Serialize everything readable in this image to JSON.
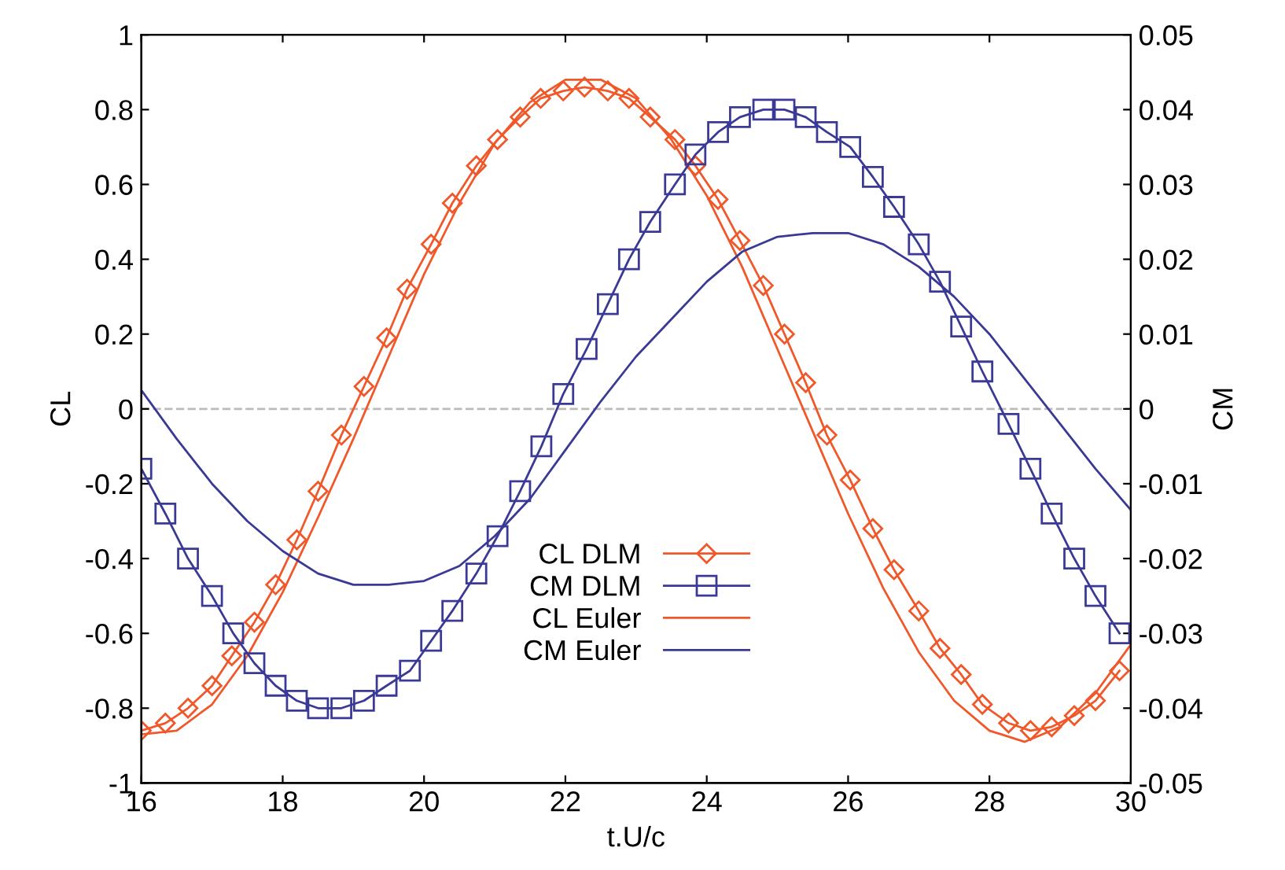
{
  "chart_data": {
    "type": "line",
    "xlabel": "t.U/c",
    "ylabel": "CL",
    "y2label": "CM",
    "xlim": [
      16,
      30
    ],
    "xticks": [
      16,
      18,
      20,
      22,
      24,
      26,
      28,
      30
    ],
    "ylim": [
      -1,
      1
    ],
    "yticks": [
      -1,
      -0.8,
      -0.6,
      -0.4,
      -0.2,
      0,
      0.2,
      0.4,
      0.6,
      0.8,
      1
    ],
    "y2lim": [
      -0.05,
      0.05
    ],
    "y2ticks": [
      -0.05,
      -0.04,
      -0.03,
      -0.02,
      -0.01,
      0,
      0.01,
      0.02,
      0.03,
      0.04,
      0.05
    ],
    "grid": false,
    "legend": "bottom",
    "ref_lines": [
      {
        "axis": "y",
        "value": 0,
        "color": "#bbbbbb",
        "line_style": "dashed"
      }
    ],
    "series": [
      {
        "name": "CL DLM",
        "color": "#f0582a",
        "marker": "diamond",
        "x": [
          16,
          16.34,
          16.66,
          17,
          17.28,
          17.6,
          17.9,
          18.2,
          18.5,
          18.83,
          19.15,
          19.47,
          19.76,
          20.1,
          20.4,
          20.74,
          21.04,
          21.36,
          21.65,
          21.97,
          22.27,
          22.6,
          22.9,
          23.2,
          23.55,
          23.84,
          24.16,
          24.47,
          24.8,
          25.1,
          25.4,
          25.7,
          26.03,
          26.35,
          26.65,
          27,
          27.3,
          27.6,
          27.9,
          28.27,
          28.58,
          28.88,
          29.2,
          29.5,
          29.84
        ],
        "values": [
          -0.86,
          -0.84,
          -0.8,
          -0.74,
          -0.66,
          -0.57,
          -0.47,
          -0.35,
          -0.22,
          -0.07,
          0.06,
          0.19,
          0.32,
          0.44,
          0.55,
          0.65,
          0.72,
          0.78,
          0.83,
          0.85,
          0.86,
          0.85,
          0.83,
          0.78,
          0.72,
          0.65,
          0.56,
          0.45,
          0.33,
          0.2,
          0.07,
          -0.07,
          -0.19,
          -0.32,
          -0.43,
          -0.54,
          -0.64,
          -0.71,
          -0.79,
          -0.84,
          -0.86,
          -0.85,
          -0.82,
          -0.78,
          -0.7
        ]
      },
      {
        "name": "CM DLM",
        "color": "#3a3a96",
        "marker": "square",
        "axis": "y2",
        "x": [
          16,
          16.34,
          16.66,
          17,
          17.3,
          17.6,
          17.9,
          18.2,
          18.5,
          18.83,
          19.15,
          19.47,
          19.8,
          20.1,
          20.4,
          20.74,
          21.04,
          21.36,
          21.66,
          21.97,
          22.3,
          22.6,
          22.9,
          23.2,
          23.55,
          23.84,
          24.16,
          24.47,
          24.8,
          25.1,
          25.4,
          25.7,
          26.03,
          26.35,
          26.65,
          27,
          27.3,
          27.6,
          27.9,
          28.27,
          28.58,
          28.88,
          29.2,
          29.5,
          29.84
        ],
        "values": [
          -0.008,
          -0.014,
          -0.02,
          -0.025,
          -0.03,
          -0.034,
          -0.037,
          -0.039,
          -0.04,
          -0.04,
          -0.039,
          -0.037,
          -0.035,
          -0.031,
          -0.027,
          -0.022,
          -0.017,
          -0.011,
          -0.005,
          0.002,
          0.008,
          0.014,
          0.02,
          0.025,
          0.03,
          0.034,
          0.037,
          0.039,
          0.04,
          0.04,
          0.039,
          0.037,
          0.035,
          0.031,
          0.027,
          0.022,
          0.017,
          0.011,
          0.005,
          -0.002,
          -0.008,
          -0.014,
          -0.02,
          -0.025,
          -0.03
        ]
      },
      {
        "name": "CL Euler",
        "color": "#f0582a",
        "marker": "none",
        "x": [
          16,
          16.5,
          17,
          17.5,
          18,
          18.5,
          19,
          19.5,
          20,
          20.5,
          21,
          21.5,
          22,
          22.5,
          23,
          23.5,
          24,
          24.5,
          25,
          25.5,
          26,
          26.5,
          27,
          27.5,
          28,
          28.5,
          29,
          29.5,
          30
        ],
        "values": [
          -0.87,
          -0.86,
          -0.79,
          -0.66,
          -0.49,
          -0.29,
          -0.08,
          0.14,
          0.36,
          0.55,
          0.71,
          0.82,
          0.88,
          0.88,
          0.83,
          0.72,
          0.57,
          0.38,
          0.16,
          -0.06,
          -0.28,
          -0.48,
          -0.65,
          -0.78,
          -0.86,
          -0.89,
          -0.85,
          -0.76,
          -0.63
        ]
      },
      {
        "name": "CM Euler",
        "color": "#3a3a96",
        "marker": "none",
        "axis": "y2",
        "x": [
          16,
          16.5,
          17,
          17.5,
          18,
          18.5,
          19,
          19.5,
          20,
          20.5,
          21,
          21.5,
          22,
          22.5,
          23,
          23.5,
          24,
          24.5,
          25,
          25.5,
          26,
          26.5,
          27,
          27.5,
          28,
          28.5,
          29,
          29.5,
          30
        ],
        "values": [
          0.0025,
          -0.004,
          -0.01,
          -0.015,
          -0.019,
          -0.022,
          -0.0235,
          -0.0235,
          -0.023,
          -0.021,
          -0.017,
          -0.012,
          -0.0055,
          0.001,
          0.007,
          0.012,
          0.017,
          0.021,
          0.023,
          0.0235,
          0.0235,
          0.022,
          0.019,
          0.015,
          0.01,
          0.004,
          -0.002,
          -0.008,
          -0.0135
        ]
      }
    ]
  }
}
